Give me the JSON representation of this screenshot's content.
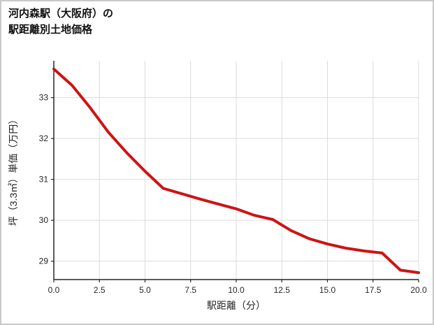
{
  "title": {
    "line1": "河内森駅（大阪府）の",
    "line2": "駅距離別土地価格"
  },
  "chart_data": {
    "type": "line",
    "title": "河内森駅（大阪府）の駅距離別土地価格",
    "title_lines": [
      "河内森駅（大阪府）の",
      "駅距離別土地価格"
    ],
    "xlabel": "駅距離（分）",
    "ylabel": "坪（3.3㎡）単価（万円）",
    "x": [
      0,
      1,
      2,
      3,
      4,
      5,
      6,
      7,
      8,
      9,
      10,
      11,
      12,
      13,
      14,
      15,
      16,
      17,
      18,
      19,
      20
    ],
    "values": [
      33.7,
      33.3,
      32.75,
      32.15,
      31.65,
      31.2,
      30.78,
      30.65,
      30.52,
      30.4,
      30.28,
      30.12,
      30.02,
      29.75,
      29.55,
      29.42,
      29.32,
      29.25,
      29.2,
      28.78,
      28.72
    ],
    "xlim": [
      0,
      20
    ],
    "ylim": [
      28.55,
      33.9
    ],
    "xticks": [
      0.0,
      2.5,
      5.0,
      7.5,
      10.0,
      12.5,
      15.0,
      17.5,
      20.0
    ],
    "xtick_labels": [
      "0.0",
      "2.5",
      "5.0",
      "7.5",
      "10.0",
      "12.5",
      "15.0",
      "17.5",
      "20.0"
    ],
    "yticks": [
      29,
      30,
      31,
      32,
      33
    ],
    "ytick_labels": [
      "29",
      "30",
      "31",
      "32",
      "33"
    ],
    "grid": true,
    "legend": "none",
    "line_color": "#cc1414",
    "grid_color": "#dcdcdc",
    "axis_color": "#262626",
    "background_color": "#ffffff"
  }
}
